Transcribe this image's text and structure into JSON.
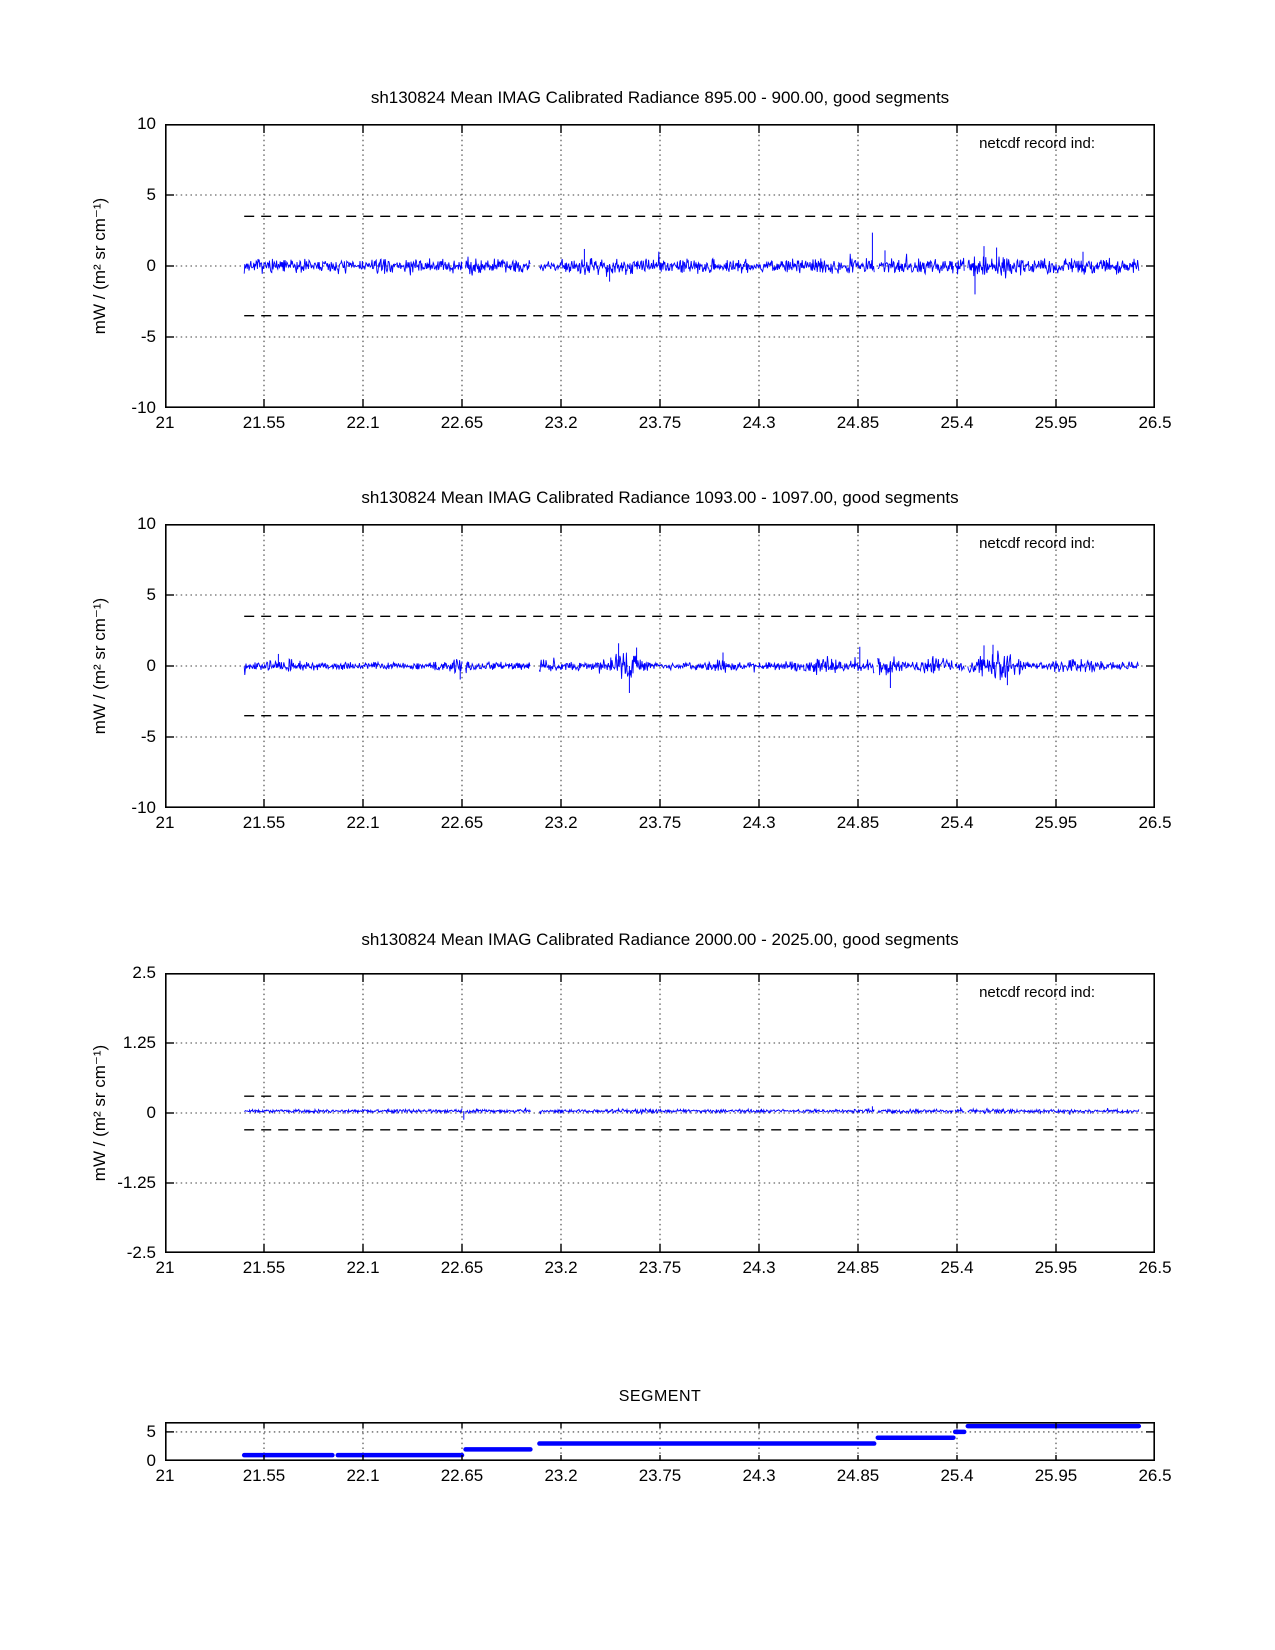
{
  "page": {
    "background": "#ffffff"
  },
  "colors": {
    "trace": "#0000ff",
    "axis": "#000000",
    "grid": "#404040",
    "dashed": "#000000"
  },
  "axis_shared": {
    "x_tick_values": [
      21,
      21.55,
      22.1,
      22.65,
      23.2,
      23.75,
      24.3,
      24.85,
      25.4,
      25.95,
      26.5
    ],
    "x_tick_labels": [
      "21",
      "21.55",
      "22.1",
      "22.65",
      "23.2",
      "23.75",
      "24.3",
      "24.85",
      "25.4",
      "25.95",
      "26.5"
    ],
    "x_range": [
      21,
      26.5
    ],
    "data_segments": [
      [
        21.44,
        22.65
      ],
      [
        22.67,
        23.03
      ],
      [
        23.08,
        24.94
      ],
      [
        24.96,
        25.38
      ],
      [
        25.39,
        25.44
      ],
      [
        25.46,
        26.41
      ]
    ]
  },
  "chart_data": [
    {
      "type": "line",
      "title": "sh130824 Mean IMAG Calibrated Radiance 895.00 - 900.00, good segments",
      "ylabel": "mW / (m² sr cm⁻¹)",
      "annotation": "netcdf record ind:",
      "ylim": [
        -10,
        10
      ],
      "y_ticks": [
        10,
        5,
        0,
        -5,
        -10
      ],
      "y_tick_labels": [
        "10",
        "5",
        "0",
        "-5",
        "-10"
      ],
      "grid_y": [
        5,
        0,
        -5
      ],
      "dashed_y": [
        3.5,
        -3.5
      ],
      "noise": {
        "seed": 7,
        "center": 0,
        "base_amp": 0.58,
        "bursts": [
          [
            22.68,
            0.05,
            0.3
          ],
          [
            23.5,
            0.12,
            0.25
          ],
          [
            24.9,
            0.04,
            0.3
          ],
          [
            25.55,
            0.3,
            0.25
          ],
          [
            26.25,
            0.2,
            0.15
          ]
        ],
        "spikes": [
          [
            23.33,
            1.2
          ],
          [
            23.47,
            -1.1
          ],
          [
            24.93,
            2.35
          ],
          [
            25.0,
            1.1
          ],
          [
            25.5,
            -2.0
          ],
          [
            25.55,
            1.4
          ],
          [
            25.62,
            1.3
          ],
          [
            26.1,
            1.0
          ]
        ]
      }
    },
    {
      "type": "line",
      "title": "sh130824 Mean IMAG Calibrated Radiance 1093.00 - 1097.00, good segments",
      "ylabel": "mW / (m² sr cm⁻¹)",
      "annotation": "netcdf record ind:",
      "ylim": [
        -10,
        10
      ],
      "y_ticks": [
        10,
        5,
        0,
        -5,
        -10
      ],
      "y_tick_labels": [
        "10",
        "5",
        "0",
        "-5",
        "-10"
      ],
      "grid_y": [
        5,
        0,
        -5
      ],
      "dashed_y": [
        3.5,
        -3.5
      ],
      "noise": {
        "seed": 13,
        "center": 0,
        "base_amp": 0.33,
        "bursts": [
          [
            21.68,
            0.08,
            0.25
          ],
          [
            22.65,
            0.05,
            0.45
          ],
          [
            23.1,
            0.05,
            0.2
          ],
          [
            23.55,
            0.09,
            0.95
          ],
          [
            24.08,
            0.03,
            0.35
          ],
          [
            24.65,
            0.13,
            0.5
          ],
          [
            25.0,
            0.1,
            0.55
          ],
          [
            25.27,
            0.08,
            0.45
          ],
          [
            25.62,
            0.14,
            0.85
          ],
          [
            26.05,
            0.12,
            0.3
          ]
        ],
        "spikes": [
          [
            21.63,
            0.85
          ],
          [
            22.64,
            -0.95
          ],
          [
            23.52,
            1.6
          ],
          [
            23.58,
            -1.9
          ],
          [
            23.62,
            1.3
          ],
          [
            24.1,
            0.95
          ],
          [
            24.86,
            1.35
          ],
          [
            25.03,
            -1.55
          ],
          [
            25.55,
            1.45
          ],
          [
            25.6,
            1.5
          ],
          [
            25.68,
            -1.35
          ]
        ]
      }
    },
    {
      "type": "line",
      "title": "sh130824 Mean IMAG Calibrated Radiance 2000.00 - 2025.00, good segments",
      "ylabel": "mW / (m² sr cm⁻¹)",
      "annotation": "netcdf record ind:",
      "ylim": [
        -2.5,
        2.5
      ],
      "y_ticks": [
        2.5,
        1.25,
        0,
        -1.25,
        -2.5
      ],
      "y_tick_labels": [
        "2.5",
        "1.25",
        "0",
        "-1.25",
        "-2.5"
      ],
      "grid_y": [
        1.25,
        0,
        -1.25
      ],
      "dashed_y": [
        0.3,
        -0.3
      ],
      "noise": {
        "seed": 21,
        "center": 0.035,
        "base_amp": 0.035,
        "bursts": [
          [
            22.67,
            0.05,
            0.02
          ],
          [
            23.6,
            0.15,
            0.015
          ],
          [
            25.1,
            0.1,
            0.01
          ],
          [
            25.6,
            0.2,
            0.015
          ]
        ],
        "spikes": [
          [
            22.66,
            -0.12
          ],
          [
            24.93,
            0.12
          ],
          [
            25.42,
            0.1
          ]
        ]
      }
    },
    {
      "type": "step",
      "title": "SEGMENT",
      "ylim": [
        0,
        6.7
      ],
      "y_ticks": [
        5,
        0
      ],
      "y_tick_labels": [
        "5",
        "0"
      ],
      "grid_y": [
        5
      ],
      "steps": [
        {
          "x": [
            21.44,
            21.93
          ],
          "y": 1
        },
        {
          "x": [
            21.96,
            22.65
          ],
          "y": 1
        },
        {
          "x": [
            22.67,
            23.03
          ],
          "y": 2
        },
        {
          "x": [
            23.08,
            24.94
          ],
          "y": 3
        },
        {
          "x": [
            24.96,
            25.38
          ],
          "y": 4
        },
        {
          "x": [
            25.39,
            25.44
          ],
          "y": 5
        },
        {
          "x": [
            25.46,
            26.41
          ],
          "y": 6
        }
      ]
    }
  ]
}
